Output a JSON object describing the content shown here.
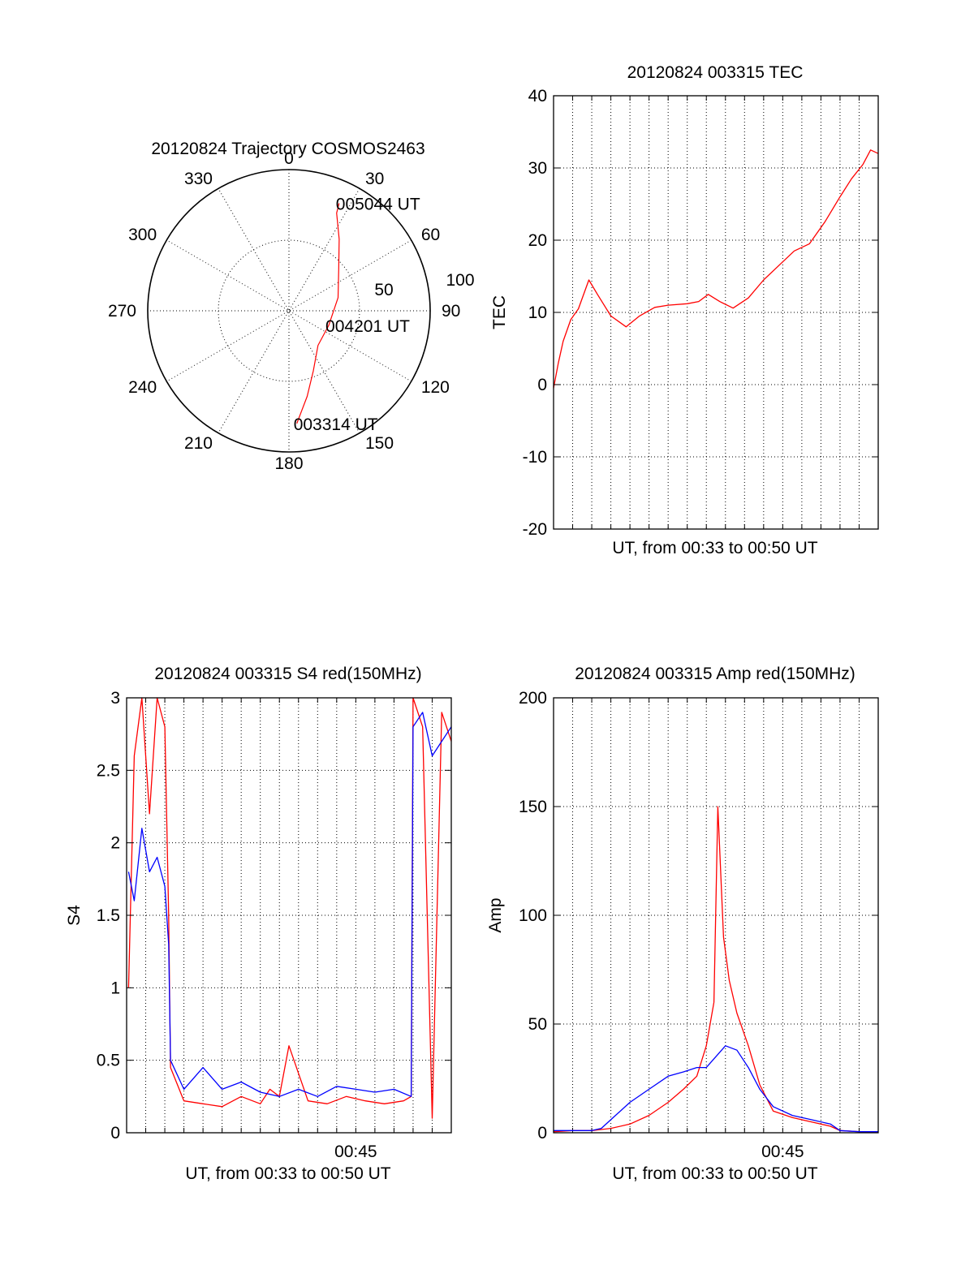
{
  "colors": {
    "red": "#ff0000",
    "blue": "#0000ff",
    "axis": "#000000",
    "background": "#ffffff"
  },
  "chart_data": [
    {
      "type": "polar-line",
      "title": "20120824 Trajectory COSMOS2463",
      "angle_ticks": [
        "0",
        "30",
        "60",
        "90",
        "120",
        "150",
        "180",
        "210",
        "240",
        "270",
        "300",
        "330"
      ],
      "radius_ticks": [
        "50",
        "100"
      ],
      "rlim": [
        0,
        100
      ],
      "grid": true,
      "series": [
        {
          "color": "red",
          "points": [
            {
              "az": 176,
              "el": 80
            },
            {
              "az": 168,
              "el": 62
            },
            {
              "az": 158,
              "el": 46
            },
            {
              "az": 140,
              "el": 32
            },
            {
              "az": 110,
              "el": 30
            },
            {
              "az": 75,
              "el": 36
            },
            {
              "az": 50,
              "el": 46
            },
            {
              "az": 35,
              "el": 62
            },
            {
              "az": 26,
              "el": 77
            },
            {
              "az": 25,
              "el": 84
            }
          ]
        }
      ],
      "annotations": [
        {
          "text": "005044 UT",
          "az": 25,
          "el": 84
        },
        {
          "text": "004201 UT",
          "az": 110,
          "el": 30
        },
        {
          "text": "003314 UT",
          "az": 176,
          "el": 80
        }
      ]
    },
    {
      "type": "line",
      "title": "20120824 003315 TEC",
      "xlabel": "UT, from 00:33 to 00:50 UT",
      "ylabel": "TEC",
      "xlim": [
        0,
        17
      ],
      "ylim": [
        -20,
        40
      ],
      "yticks": [
        "-20",
        "-10",
        "0",
        "10",
        "20",
        "30",
        "40"
      ],
      "grid": true,
      "series": [
        {
          "color": "red",
          "x": [
            0,
            0.25,
            0.5,
            0.9,
            1.3,
            1.85,
            2.3,
            3.0,
            3.8,
            4.5,
            5.3,
            6.0,
            7.0,
            7.6,
            8.1,
            8.7,
            9.4,
            10.2,
            11.0,
            11.8,
            12.6,
            13.4,
            14.2,
            15.0,
            15.6,
            16.2,
            16.6,
            17.0
          ],
          "y": [
            -0.5,
            3,
            6,
            9,
            10.5,
            14.5,
            12.5,
            9.5,
            8,
            9.5,
            10.7,
            11,
            11.2,
            11.5,
            12.5,
            11.5,
            10.6,
            12,
            14.5,
            16.5,
            18.5,
            19.5,
            22.5,
            26,
            28.5,
            30.5,
            32.5,
            32
          ]
        }
      ]
    },
    {
      "type": "line",
      "title": "20120824 003315 S4 red(150MHz)",
      "xlabel": "UT, from 00:33 to 00:50 UT",
      "ylabel": "S4",
      "xlim": [
        0,
        17
      ],
      "ylim": [
        0,
        3
      ],
      "yticks": [
        "0",
        "0.5",
        "1",
        "1.5",
        "2",
        "2.5",
        "3"
      ],
      "xticks": [
        {
          "value": 12,
          "label": "00:45"
        }
      ],
      "grid": true,
      "series": [
        {
          "color": "red",
          "x": [
            0.1,
            0.4,
            0.8,
            1.2,
            1.6,
            2.0,
            2.2,
            2.3,
            3.0,
            4.0,
            5.0,
            6.0,
            7.0,
            7.5,
            8.0,
            8.5,
            9.5,
            10.5,
            11.5,
            12.5,
            13.5,
            14.5,
            14.9,
            15.0,
            15.5,
            16.0,
            16.5,
            17.0
          ],
          "y": [
            1.0,
            2.6,
            3.0,
            2.2,
            3.0,
            2.8,
            1.5,
            0.45,
            0.22,
            0.2,
            0.18,
            0.25,
            0.2,
            0.3,
            0.25,
            0.6,
            0.22,
            0.2,
            0.25,
            0.22,
            0.2,
            0.22,
            0.25,
            3.0,
            2.8,
            0.1,
            2.9,
            2.7
          ]
        },
        {
          "color": "blue",
          "x": [
            0.1,
            0.4,
            0.8,
            1.2,
            1.6,
            2.0,
            2.2,
            2.3,
            3.0,
            4.0,
            5.0,
            6.0,
            7.0,
            8.0,
            9.0,
            10.0,
            11.0,
            12.0,
            13.0,
            14.0,
            14.9,
            15.0,
            15.5,
            16.0,
            16.5,
            17.0
          ],
          "y": [
            1.8,
            1.6,
            2.1,
            1.8,
            1.9,
            1.7,
            1.3,
            0.5,
            0.3,
            0.45,
            0.3,
            0.35,
            0.28,
            0.25,
            0.3,
            0.25,
            0.32,
            0.3,
            0.28,
            0.3,
            0.25,
            2.8,
            2.9,
            2.6,
            2.7,
            2.8
          ]
        }
      ]
    },
    {
      "type": "line",
      "title": "20120824 003315 Amp red(150MHz)",
      "xlabel": "UT, from 00:33 to 00:50 UT",
      "ylabel": "Amp",
      "xlim": [
        0,
        17
      ],
      "ylim": [
        0,
        200
      ],
      "yticks": [
        "0",
        "50",
        "100",
        "150",
        "200"
      ],
      "xticks": [
        {
          "value": 12,
          "label": "00:45"
        }
      ],
      "grid": true,
      "series": [
        {
          "color": "red",
          "x": [
            0,
            1.0,
            2.0,
            2.5,
            3.0,
            4.0,
            5.0,
            6.0,
            6.8,
            7.5,
            8.0,
            8.4,
            8.6,
            8.9,
            9.2,
            9.6,
            10.2,
            10.8,
            11.5,
            12.5,
            13.5,
            14.5,
            15.0,
            16.0,
            17.0
          ],
          "y": [
            0.5,
            1,
            1,
            1.5,
            2,
            4,
            8,
            14,
            20,
            26,
            40,
            60,
            150,
            90,
            70,
            55,
            40,
            22,
            10,
            7,
            5,
            3,
            1,
            0.5,
            0.5
          ]
        },
        {
          "color": "blue",
          "x": [
            0,
            1.0,
            2.0,
            2.5,
            3.0,
            4.0,
            5.0,
            6.0,
            6.8,
            7.5,
            8.0,
            8.5,
            9.0,
            9.6,
            10.2,
            10.8,
            11.5,
            12.5,
            13.5,
            14.5,
            15.0,
            16.0,
            17.0
          ],
          "y": [
            1,
            1,
            1,
            2,
            6,
            14,
            20,
            26,
            28,
            30,
            30,
            35,
            40,
            38,
            30,
            20,
            12,
            8,
            6,
            4,
            1,
            0.5,
            0.5
          ]
        }
      ]
    }
  ]
}
